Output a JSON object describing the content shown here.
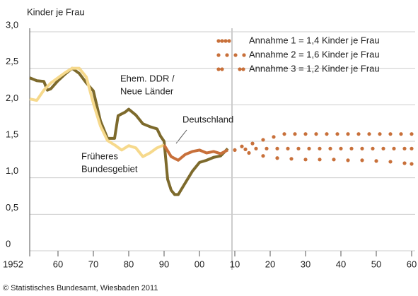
{
  "chart_data": {
    "type": "line",
    "y_label": "Kinder je Frau",
    "source": "© Statistisches Bundesamt, Wiesbaden 2011",
    "xlim": [
      1951,
      2061
    ],
    "ylim": [
      0,
      3
    ],
    "xticks": [
      1952,
      {
        "value": 1960,
        "label": "60"
      },
      {
        "value": 1970,
        "label": "70"
      },
      {
        "value": 1980,
        "label": "80"
      },
      {
        "value": 1990,
        "label": "90"
      },
      {
        "value": 2000,
        "label": "00"
      },
      {
        "value": 2010,
        "label": "10"
      },
      {
        "value": 2020,
        "label": "20"
      },
      {
        "value": 2030,
        "label": "30"
      },
      {
        "value": 2040,
        "label": "40"
      },
      {
        "value": 2050,
        "label": "50"
      },
      {
        "value": 2060,
        "label": "60"
      }
    ],
    "yticks": [
      {
        "value": 0,
        "label": "0"
      },
      {
        "value": 0.5,
        "label": "0,5"
      },
      {
        "value": 1.0,
        "label": "1,0"
      },
      {
        "value": 1.5,
        "label": "1,5"
      },
      {
        "value": 2.0,
        "label": "2,0"
      },
      {
        "value": 2.5,
        "label": "2,5"
      },
      {
        "value": 3.0,
        "label": "3,0"
      }
    ],
    "grid": true,
    "annotations": [
      {
        "lines": [
          "Ehem. DDR /",
          "Neue Länder"
        ]
      },
      {
        "lines": [
          "Deutschland"
        ]
      },
      {
        "lines": [
          "Früheres",
          "Bundesgebiet"
        ]
      }
    ],
    "series": [
      {
        "color": "#7d6a2c",
        "style": "line",
        "x": [
          1952,
          1954,
          1956,
          1957,
          1958,
          1960,
          1962,
          1964,
          1966,
          1968,
          1970,
          1972,
          1974,
          1976,
          1977,
          1979,
          1980,
          1982,
          1984,
          1986,
          1988,
          1989,
          1990,
          1991,
          1992,
          1993,
          1994,
          1996,
          1998,
          2000,
          2002,
          2004,
          2006,
          2008
        ],
        "values": [
          2.37,
          2.33,
          2.32,
          2.2,
          2.22,
          2.33,
          2.42,
          2.5,
          2.43,
          2.3,
          2.19,
          1.78,
          1.54,
          1.54,
          1.85,
          1.9,
          1.94,
          1.86,
          1.74,
          1.7,
          1.67,
          1.57,
          1.5,
          0.98,
          0.83,
          0.77,
          0.77,
          0.93,
          1.09,
          1.21,
          1.24,
          1.28,
          1.3,
          1.4
        ]
      },
      {
        "color": "#f6d98c",
        "style": "line",
        "x": [
          1952,
          1954,
          1956,
          1958,
          1960,
          1962,
          1964,
          1966,
          1968,
          1970,
          1972,
          1974,
          1976,
          1978,
          1980,
          1982,
          1984,
          1986,
          1988,
          1990
        ],
        "values": [
          2.08,
          2.06,
          2.2,
          2.3,
          2.37,
          2.44,
          2.5,
          2.5,
          2.38,
          2.02,
          1.71,
          1.51,
          1.45,
          1.38,
          1.44,
          1.41,
          1.29,
          1.34,
          1.41,
          1.45
        ]
      },
      {
        "color": "#c8703a",
        "style": "line",
        "x": [
          1990,
          1992,
          1994,
          1996,
          1998,
          2000,
          2002,
          2004,
          2006,
          2008
        ],
        "values": [
          1.45,
          1.29,
          1.24,
          1.32,
          1.36,
          1.38,
          1.34,
          1.36,
          1.33,
          1.38
        ]
      },
      {
        "name": "Annahme 1 = 1,4 Kinder je Frau",
        "color": "#c8703a",
        "style": "dots",
        "x": [
          2010,
          2013,
          2016,
          2019,
          2022,
          2025,
          2028,
          2031,
          2034,
          2037,
          2040,
          2043,
          2046,
          2049,
          2052,
          2055,
          2058,
          2060
        ],
        "values": [
          1.38,
          1.39,
          1.4,
          1.4,
          1.4,
          1.4,
          1.4,
          1.4,
          1.4,
          1.4,
          1.4,
          1.4,
          1.4,
          1.4,
          1.4,
          1.4,
          1.4,
          1.4
        ]
      },
      {
        "name": "Annahme 2 = 1,6 Kinder je Frau",
        "color": "#c8703a",
        "style": "dots",
        "x": [
          2012,
          2015,
          2018,
          2021,
          2024,
          2027,
          2030,
          2033,
          2036,
          2039,
          2042,
          2045,
          2048,
          2051,
          2054,
          2057,
          2060
        ],
        "values": [
          1.43,
          1.47,
          1.52,
          1.56,
          1.6,
          1.6,
          1.6,
          1.6,
          1.6,
          1.6,
          1.6,
          1.6,
          1.6,
          1.6,
          1.6,
          1.6,
          1.6
        ]
      },
      {
        "name": "Annahme 3 = 1,2 Kinder je Frau",
        "color": "#c8703a",
        "style": "dots",
        "x": [
          2014,
          2018,
          2022,
          2026,
          2030,
          2034,
          2038,
          2042,
          2046,
          2050,
          2054,
          2058,
          2060
        ],
        "values": [
          1.34,
          1.3,
          1.27,
          1.26,
          1.25,
          1.25,
          1.25,
          1.24,
          1.24,
          1.23,
          1.22,
          1.2,
          1.19
        ]
      }
    ]
  }
}
